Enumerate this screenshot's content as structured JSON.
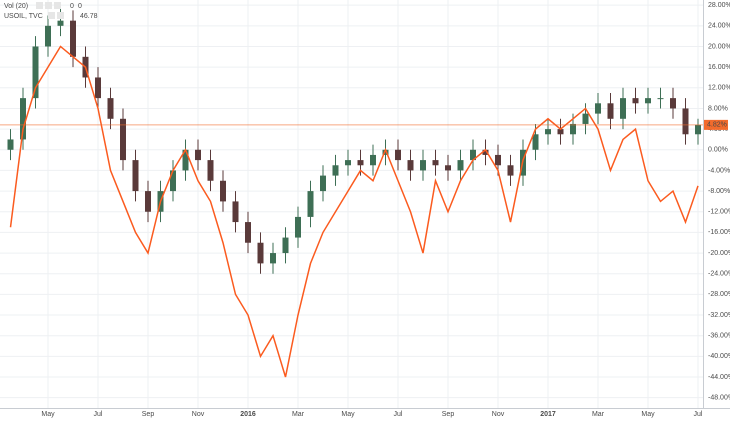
{
  "chart_data": {
    "type": "candlestick",
    "categories": [
      null,
      null,
      null,
      "May",
      null,
      null,
      null,
      "Jul",
      null,
      null,
      null,
      "Sep",
      null,
      null,
      null,
      "Nov",
      null,
      null,
      null,
      "2016",
      null,
      null,
      null,
      "Mar",
      null,
      null,
      null,
      "May",
      null,
      null,
      null,
      "Jul",
      null,
      null,
      null,
      "Sep",
      null,
      null,
      null,
      "Nov",
      null,
      null,
      null,
      "2017",
      null,
      null,
      null,
      "Mar",
      null,
      null,
      null,
      "May",
      null,
      null,
      null,
      "Jul"
    ],
    "open": [
      0,
      2,
      10,
      20,
      24,
      25,
      18,
      14,
      10,
      6,
      -2,
      -8,
      -12,
      -8,
      -4,
      0,
      -2,
      -6,
      -10,
      -14,
      -18,
      -22,
      -20,
      -17,
      -13,
      -8,
      -5,
      -3,
      -2,
      -3,
      -1,
      0,
      -2,
      -4,
      -2,
      -3,
      -4,
      -2,
      0,
      -1,
      -3,
      -5,
      0,
      3,
      4,
      3,
      5,
      7,
      9,
      6,
      10,
      9,
      10,
      10,
      8,
      3
    ],
    "high": [
      4,
      12,
      22,
      26,
      28,
      27,
      20,
      16,
      12,
      8,
      0,
      -6,
      -6,
      -2,
      2,
      2,
      0,
      -4,
      -8,
      -12,
      -16,
      -18,
      -15,
      -11,
      -6,
      -3,
      -1,
      0,
      0,
      1,
      2,
      2,
      0,
      0,
      0,
      -1,
      0,
      2,
      2,
      1,
      -1,
      2,
      5,
      6,
      6,
      7,
      9,
      11,
      11,
      12,
      12,
      12,
      12,
      12,
      10,
      6
    ],
    "low": [
      -2,
      0,
      8,
      18,
      22,
      16,
      12,
      8,
      4,
      -4,
      -10,
      -14,
      -14,
      -10,
      -6,
      -4,
      -8,
      -12,
      -16,
      -20,
      -24,
      -24,
      -22,
      -19,
      -15,
      -10,
      -7,
      -5,
      -5,
      -5,
      -3,
      -4,
      -6,
      -6,
      -5,
      -6,
      -6,
      -4,
      -3,
      -5,
      -7,
      -7,
      -2,
      1,
      1,
      1,
      3,
      5,
      4,
      4,
      7,
      7,
      8,
      6,
      1,
      1
    ],
    "close": [
      2,
      10,
      20,
      24,
      25,
      18,
      14,
      10,
      6,
      -2,
      -8,
      -12,
      -8,
      -4,
      0,
      -2,
      -6,
      -10,
      -14,
      -18,
      -22,
      -20,
      -17,
      -13,
      -8,
      -5,
      -3,
      -2,
      -3,
      -1,
      0,
      -2,
      -4,
      -2,
      -3,
      -4,
      -2,
      0,
      -1,
      -3,
      -5,
      0,
      3,
      4,
      3,
      5,
      7,
      9,
      6,
      10,
      9,
      10,
      10,
      8,
      3,
      4.82
    ],
    "up_color": "#3e6f55",
    "down_color": "#5a3a3a",
    "price_label": "4.82%",
    "price_color": "#f26b2c",
    "series": [
      {
        "name": "USOIL, TVC",
        "color": "#fb5b1f",
        "last_value": 46.78,
        "values": [
          -15,
          4,
          12,
          16,
          20,
          18,
          16,
          8,
          -4,
          -10,
          -16,
          -20,
          -10,
          -4,
          0,
          -6,
          -10,
          -18,
          -28,
          -32,
          -40,
          -36,
          -44,
          -32,
          -22,
          -16,
          -12,
          -8,
          -4,
          -6,
          0,
          -6,
          -12,
          -20,
          -6,
          -12,
          -6,
          -2,
          0,
          -4,
          -14,
          -2,
          4,
          6,
          4,
          6,
          8,
          4,
          -4,
          2,
          4,
          -6,
          -10,
          -8,
          -14,
          -7
        ]
      }
    ],
    "volume_legend": {
      "name": "Vol (20)",
      "values": [
        0,
        0
      ]
    },
    "ylim": [
      -50,
      29
    ],
    "yticks": [
      {
        "value": 28,
        "label": "28.00%"
      },
      {
        "value": 24,
        "label": "24.00%"
      },
      {
        "value": 20,
        "label": "20.00%"
      },
      {
        "value": 16,
        "label": "16.00%"
      },
      {
        "value": 12,
        "label": "12.00%"
      },
      {
        "value": 8,
        "label": "8.00%"
      },
      {
        "value": 4,
        "label": "4.00%"
      },
      {
        "value": 0,
        "label": "0.00%"
      },
      {
        "value": -4,
        "label": "-4.00%"
      },
      {
        "value": -8,
        "label": "-8.00%"
      },
      {
        "value": -12,
        "label": "-12.00%"
      },
      {
        "value": -16,
        "label": "-16.00%"
      },
      {
        "value": -20,
        "label": "-20.00%"
      },
      {
        "value": -24,
        "label": "-24.00%"
      },
      {
        "value": -28,
        "label": "-28.00%"
      },
      {
        "value": -32,
        "label": "-32.00%"
      },
      {
        "value": -36,
        "label": "-36.00%"
      },
      {
        "value": -40,
        "label": "-40.00%"
      },
      {
        "value": -44,
        "label": "-44.00%"
      },
      {
        "value": -48,
        "label": "-48.00%"
      }
    ],
    "grid": true
  }
}
